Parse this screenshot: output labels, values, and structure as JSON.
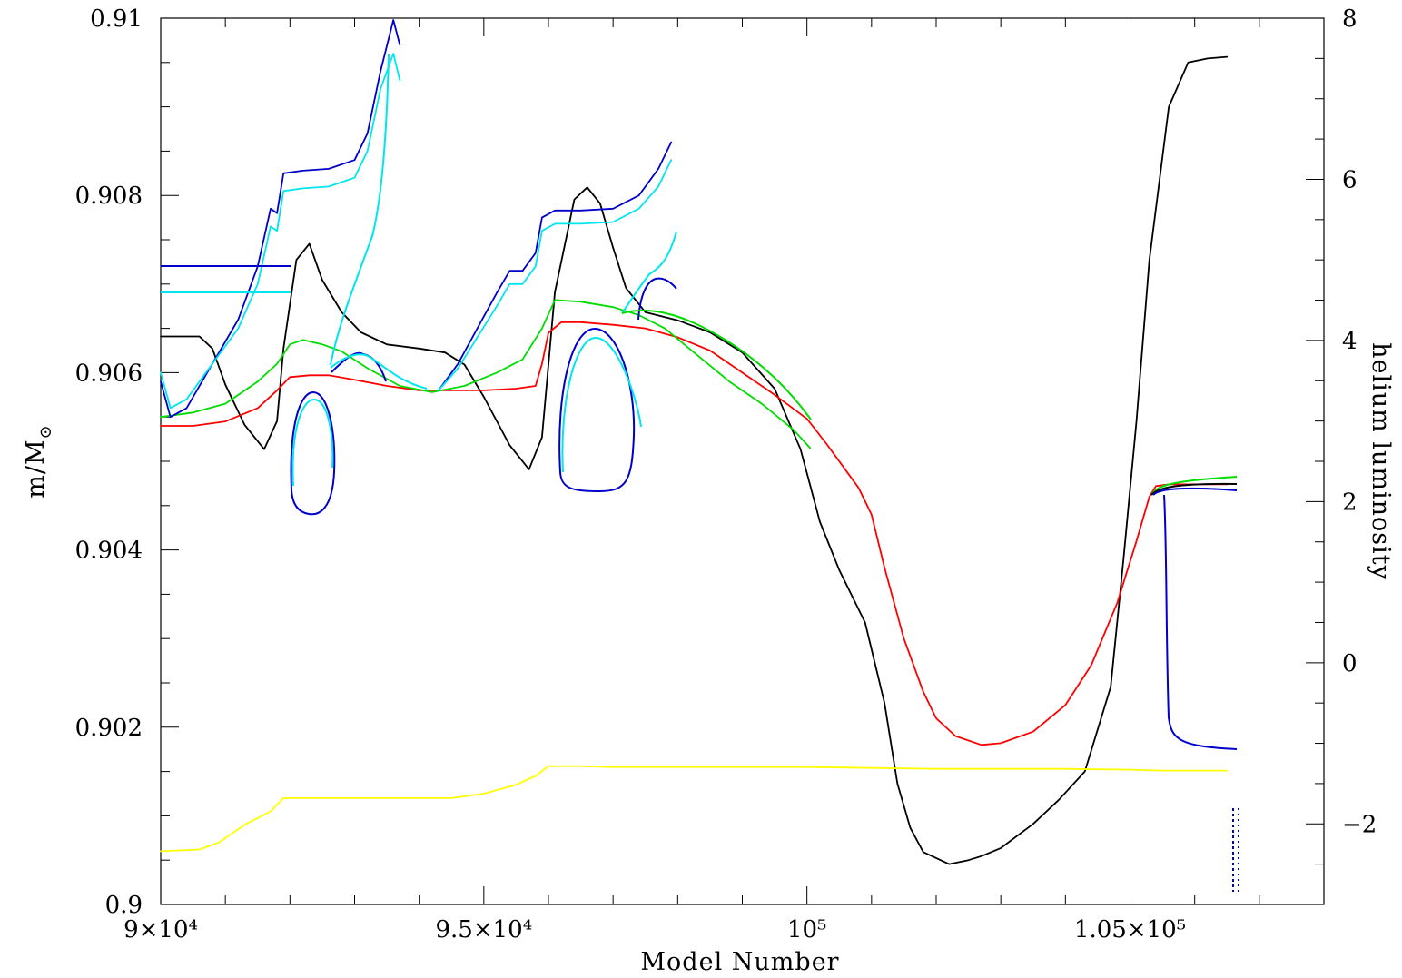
{
  "chart_data": {
    "type": "line",
    "title": "",
    "xlabel": "Model Number",
    "ylabel_left": "m/M",
    "ylabel_left_subscript": "⊙",
    "ylabel_right": "helium luminosity",
    "xlim": [
      90000,
      108000
    ],
    "ylim_left": [
      0.9,
      0.91
    ],
    "ylim_right": [
      -3,
      8
    ],
    "grid": false,
    "x_ticks": [
      {
        "value": 90000,
        "label": "9×10⁴"
      },
      {
        "value": 95000,
        "label": "9.5×10⁴"
      },
      {
        "value": 100000,
        "label": "10⁵"
      },
      {
        "value": 105000,
        "label": "1.05×10⁵"
      }
    ],
    "y_left_ticks": [
      {
        "value": 0.9,
        "label": "0.9"
      },
      {
        "value": 0.902,
        "label": "0.902"
      },
      {
        "value": 0.904,
        "label": "0.904"
      },
      {
        "value": 0.906,
        "label": "0.906"
      },
      {
        "value": 0.908,
        "label": "0.908"
      },
      {
        "value": 0.91,
        "label": "0.91"
      }
    ],
    "y_right_ticks": [
      {
        "value": -2,
        "label": "−2"
      },
      {
        "value": 0,
        "label": "0"
      },
      {
        "value": 2,
        "label": "2"
      },
      {
        "value": 4,
        "label": "4"
      },
      {
        "value": 6,
        "label": "6"
      },
      {
        "value": 8,
        "label": "8"
      }
    ],
    "series": [
      {
        "color": "#000000",
        "axis": "right",
        "x": [
          90000,
          90300,
          90600,
          90800,
          91000,
          91300,
          91600,
          91800,
          91900,
          92100,
          92300,
          92500,
          92800,
          93100,
          93500,
          94000,
          94400,
          94700,
          95000,
          95400,
          95700,
          95900,
          96100,
          96400,
          96600,
          96800,
          97000,
          97200,
          97500,
          98000,
          98500,
          99000,
          99500,
          99900,
          100200,
          100500,
          100900,
          101200,
          101400,
          101600,
          101800,
          102200,
          102500,
          102700,
          103000,
          103500,
          103900,
          104300,
          104700,
          104900,
          105100,
          105300,
          105600,
          105900,
          106200,
          106500
        ],
        "y": [
          4.05,
          4.05,
          4.05,
          3.9,
          3.45,
          2.95,
          2.65,
          3.0,
          3.9,
          5.0,
          5.2,
          4.75,
          4.35,
          4.1,
          3.95,
          3.9,
          3.85,
          3.7,
          3.3,
          2.7,
          2.4,
          2.8,
          4.6,
          5.75,
          5.9,
          5.7,
          5.15,
          4.65,
          4.35,
          4.25,
          4.1,
          3.85,
          3.4,
          2.65,
          1.75,
          1.15,
          0.5,
          -0.5,
          -1.5,
          -2.05,
          -2.35,
          -2.5,
          -2.45,
          -2.4,
          -2.3,
          -2.0,
          -1.7,
          -1.35,
          -0.3,
          1.3,
          3.0,
          5.0,
          6.9,
          7.45,
          7.5,
          7.52
        ]
      },
      {
        "color": "#ffff00",
        "axis": "left",
        "x": [
          90000,
          90600,
          90900,
          91300,
          91700,
          91900,
          92200,
          92800,
          93500,
          94000,
          94500,
          95000,
          95500,
          95800,
          96000,
          96500,
          97000,
          98000,
          99000,
          100000,
          101000,
          102000,
          103000,
          104000,
          105000,
          105500,
          106000,
          106500
        ],
        "y": [
          0.9006,
          0.90062,
          0.9007,
          0.9009,
          0.90105,
          0.9012,
          0.9012,
          0.9012,
          0.9012,
          0.9012,
          0.9012,
          0.90125,
          0.90135,
          0.90145,
          0.90156,
          0.90156,
          0.90155,
          0.90155,
          0.90155,
          0.90155,
          0.90154,
          0.90153,
          0.90153,
          0.90153,
          0.90152,
          0.90151,
          0.90151,
          0.90151
        ]
      },
      {
        "color": "#ff0000",
        "axis": "left",
        "x": [
          90000,
          90500,
          91000,
          91500,
          91800,
          92000,
          92300,
          92600,
          93000,
          93500,
          94000,
          94500,
          95000,
          95500,
          95800,
          95900,
          96000,
          96200,
          96500,
          97000,
          97500,
          98000,
          98500,
          99000,
          99500,
          100000,
          100300,
          100600,
          100800,
          101000,
          101200,
          101500,
          101800,
          102000,
          102300,
          102700,
          103000,
          103500,
          104000,
          104400,
          104800,
          105100,
          105300,
          105400,
          105600,
          106000,
          106500
        ],
        "y": [
          0.9054,
          0.9054,
          0.90545,
          0.9056,
          0.9058,
          0.90595,
          0.90597,
          0.90597,
          0.90592,
          0.90585,
          0.9058,
          0.9058,
          0.9058,
          0.90582,
          0.90585,
          0.9061,
          0.90645,
          0.90657,
          0.90657,
          0.90654,
          0.9065,
          0.9064,
          0.90625,
          0.906,
          0.90575,
          0.90548,
          0.9052,
          0.9049,
          0.9047,
          0.9044,
          0.9038,
          0.903,
          0.9024,
          0.9021,
          0.9019,
          0.9018,
          0.90182,
          0.90195,
          0.90225,
          0.9027,
          0.9034,
          0.9041,
          0.9046,
          0.90472,
          0.90474,
          0.90474,
          0.90474
        ]
      },
      {
        "color": "#00dd00",
        "axis": "left",
        "x": [
          90000,
          90500,
          91000,
          91500,
          91800,
          92000,
          92200,
          92500,
          92800,
          93200,
          93700,
          94200,
          94700,
          95200,
          95600,
          95900,
          96100,
          96500,
          97000,
          97400,
          97800,
          98300,
          98800,
          99300,
          99800,
          100050
        ],
        "y": [
          0.9055,
          0.90555,
          0.90565,
          0.9059,
          0.9061,
          0.90632,
          0.90637,
          0.90632,
          0.90624,
          0.90605,
          0.90585,
          0.90578,
          0.90585,
          0.906,
          0.90615,
          0.9065,
          0.90682,
          0.9068,
          0.90674,
          0.90665,
          0.9065,
          0.9062,
          0.9059,
          0.90565,
          0.90535,
          0.90515
        ]
      },
      {
        "color": "#0000cc",
        "axis": "left",
        "x": [
          90000,
          90150,
          90400,
          90800,
          91200,
          91500,
          91700,
          91800,
          91900,
          92200,
          92600,
          93000,
          93200,
          93400,
          93600,
          93700
        ],
        "y": [
          0.9059,
          0.9055,
          0.9056,
          0.9061,
          0.9066,
          0.9072,
          0.90785,
          0.9078,
          0.90825,
          0.90828,
          0.9083,
          0.9084,
          0.9087,
          0.9094,
          0.90998,
          0.9097
        ]
      },
      {
        "color": "#0000cc",
        "axis": "left",
        "x": [
          94300,
          94600,
          94900,
          95200,
          95400,
          95600,
          95800,
          95900,
          96100,
          96500,
          97000,
          97400,
          97700,
          97900
        ],
        "y": [
          0.9058,
          0.9061,
          0.9065,
          0.9069,
          0.90715,
          0.90715,
          0.90735,
          0.90775,
          0.90783,
          0.90783,
          0.90785,
          0.908,
          0.9083,
          0.9086
        ]
      },
      {
        "color": "#00e5ee",
        "axis": "left",
        "x": [
          90000,
          90150,
          90400,
          90800,
          91200,
          91500,
          91700,
          91800,
          91900,
          92200,
          92600,
          93000,
          93200,
          93400,
          93600,
          93700
        ],
        "y": [
          0.906,
          0.9056,
          0.9057,
          0.9061,
          0.9065,
          0.907,
          0.90765,
          0.9076,
          0.90805,
          0.90808,
          0.9081,
          0.9082,
          0.9085,
          0.9092,
          0.9096,
          0.9093
        ]
      },
      {
        "color": "#00e5ee",
        "axis": "left",
        "x": [
          94300,
          94600,
          94900,
          95200,
          95400,
          95600,
          95800,
          95900,
          96100,
          96500,
          97000,
          97400,
          97700,
          97900
        ],
        "y": [
          0.9058,
          0.90605,
          0.9064,
          0.90675,
          0.907,
          0.907,
          0.9072,
          0.9076,
          0.90768,
          0.90768,
          0.9077,
          0.90785,
          0.9081,
          0.9084
        ]
      }
    ]
  }
}
